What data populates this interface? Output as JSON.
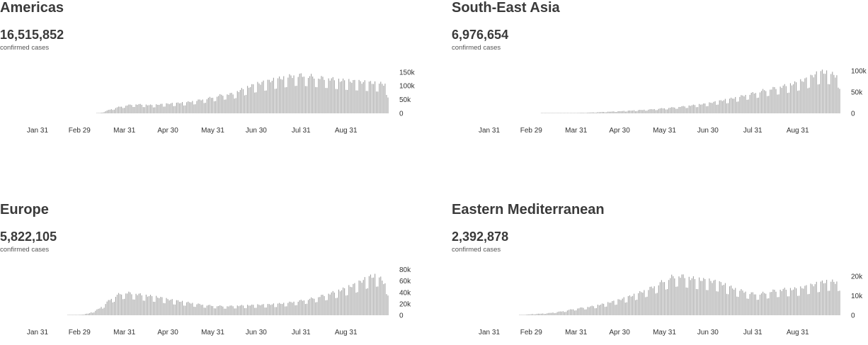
{
  "chart_data": [
    {
      "type": "bar",
      "title": "Americas",
      "total": "16,515,852",
      "caption": "confirmed cases",
      "y_ticks": [
        {
          "value": 0,
          "label": "0"
        },
        {
          "value": 50000,
          "label": "50k"
        },
        {
          "value": 100000,
          "label": "100k"
        },
        {
          "value": 150000,
          "label": "150k"
        }
      ],
      "ymax": 170000,
      "x_ticks": [
        {
          "day": 30,
          "label": "Jan 31"
        },
        {
          "day": 59,
          "label": "Feb 29"
        },
        {
          "day": 90,
          "label": "Mar 31"
        },
        {
          "day": 120,
          "label": "Apr 30"
        },
        {
          "day": 151,
          "label": "May 31"
        },
        {
          "day": 181,
          "label": "Jun 30"
        },
        {
          "day": 212,
          "label": "Jul 31"
        },
        {
          "day": 243,
          "label": "Aug 31"
        }
      ],
      "x_start_day": 8,
      "x_end_day": 272,
      "daily_points": [
        [
          8,
          0
        ],
        [
          70,
          0
        ],
        [
          73,
          1000
        ],
        [
          75,
          4000
        ],
        [
          77,
          8000
        ],
        [
          80,
          14000
        ],
        [
          85,
          22000
        ],
        [
          90,
          28000
        ],
        [
          95,
          32000
        ],
        [
          100,
          33000
        ],
        [
          105,
          31000
        ],
        [
          110,
          30000
        ],
        [
          115,
          33000
        ],
        [
          120,
          35000
        ],
        [
          125,
          37000
        ],
        [
          130,
          39000
        ],
        [
          135,
          42000
        ],
        [
          140,
          47000
        ],
        [
          145,
          52000
        ],
        [
          150,
          58000
        ],
        [
          155,
          65000
        ],
        [
          160,
          70000
        ],
        [
          165,
          72000
        ],
        [
          170,
          85000
        ],
        [
          175,
          95000
        ],
        [
          180,
          105000
        ],
        [
          185,
          112000
        ],
        [
          190,
          118000
        ],
        [
          195,
          125000
        ],
        [
          200,
          130000
        ],
        [
          205,
          136000
        ],
        [
          210,
          140000
        ],
        [
          215,
          138000
        ],
        [
          220,
          135000
        ],
        [
          225,
          130000
        ],
        [
          230,
          128000
        ],
        [
          235,
          124000
        ],
        [
          240,
          120000
        ],
        [
          245,
          118000
        ],
        [
          250,
          116000
        ],
        [
          255,
          114000
        ],
        [
          260,
          112000
        ],
        [
          265,
          110000
        ],
        [
          270,
          106000
        ],
        [
          272,
          80000
        ]
      ]
    },
    {
      "type": "bar",
      "title": "South-East Asia",
      "total": "6,976,654",
      "caption": "confirmed cases",
      "y_ticks": [
        {
          "value": 0,
          "label": "0"
        },
        {
          "value": 50000,
          "label": "50k"
        },
        {
          "value": 100000,
          "label": "100k"
        }
      ],
      "ymax": 110000,
      "x_ticks": [
        {
          "day": 30,
          "label": "Jan 31"
        },
        {
          "day": 59,
          "label": "Feb 29"
        },
        {
          "day": 90,
          "label": "Mar 31"
        },
        {
          "day": 120,
          "label": "Apr 30"
        },
        {
          "day": 151,
          "label": "May 31"
        },
        {
          "day": 181,
          "label": "Jun 30"
        },
        {
          "day": 212,
          "label": "Jul 31"
        },
        {
          "day": 243,
          "label": "Aug 31"
        }
      ],
      "x_start_day": 8,
      "x_end_day": 272,
      "daily_points": [
        [
          8,
          0
        ],
        [
          65,
          0
        ],
        [
          70,
          200
        ],
        [
          80,
          500
        ],
        [
          90,
          1000
        ],
        [
          100,
          2000
        ],
        [
          110,
          3500
        ],
        [
          120,
          5000
        ],
        [
          130,
          7000
        ],
        [
          140,
          9000
        ],
        [
          150,
          12000
        ],
        [
          160,
          15000
        ],
        [
          170,
          19000
        ],
        [
          180,
          23000
        ],
        [
          190,
          30000
        ],
        [
          200,
          37000
        ],
        [
          210,
          46000
        ],
        [
          220,
          55000
        ],
        [
          230,
          62000
        ],
        [
          240,
          70000
        ],
        [
          250,
          82000
        ],
        [
          255,
          92000
        ],
        [
          260,
          98000
        ],
        [
          265,
          95000
        ],
        [
          270,
          88000
        ],
        [
          272,
          80000
        ]
      ]
    },
    {
      "type": "bar",
      "title": "Europe",
      "total": "5,822,105",
      "caption": "confirmed cases",
      "y_ticks": [
        {
          "value": 0,
          "label": "0"
        },
        {
          "value": 20000,
          "label": "20k"
        },
        {
          "value": 40000,
          "label": "40k"
        },
        {
          "value": 60000,
          "label": "60k"
        },
        {
          "value": 80000,
          "label": "80k"
        }
      ],
      "ymax": 82000,
      "x_ticks": [
        {
          "day": 30,
          "label": "Jan 31"
        },
        {
          "day": 59,
          "label": "Feb 29"
        },
        {
          "day": 90,
          "label": "Mar 31"
        },
        {
          "day": 120,
          "label": "Apr 30"
        },
        {
          "day": 151,
          "label": "May 31"
        },
        {
          "day": 181,
          "label": "Jun 30"
        },
        {
          "day": 212,
          "label": "Jul 31"
        },
        {
          "day": 243,
          "label": "Aug 31"
        }
      ],
      "x_start_day": 8,
      "x_end_day": 272,
      "daily_points": [
        [
          8,
          0
        ],
        [
          50,
          0
        ],
        [
          55,
          200
        ],
        [
          60,
          1000
        ],
        [
          65,
          3000
        ],
        [
          70,
          8000
        ],
        [
          75,
          16000
        ],
        [
          80,
          28000
        ],
        [
          85,
          36000
        ],
        [
          90,
          40000
        ],
        [
          95,
          39000
        ],
        [
          100,
          37000
        ],
        [
          105,
          35000
        ],
        [
          110,
          33000
        ],
        [
          115,
          31000
        ],
        [
          120,
          28000
        ],
        [
          125,
          26000
        ],
        [
          130,
          24000
        ],
        [
          140,
          20000
        ],
        [
          150,
          17000
        ],
        [
          160,
          16000
        ],
        [
          170,
          17000
        ],
        [
          180,
          18000
        ],
        [
          190,
          19000
        ],
        [
          200,
          21000
        ],
        [
          210,
          25000
        ],
        [
          220,
          30000
        ],
        [
          230,
          37000
        ],
        [
          240,
          45000
        ],
        [
          250,
          55000
        ],
        [
          255,
          62000
        ],
        [
          260,
          68000
        ],
        [
          265,
          70000
        ],
        [
          270,
          55000
        ],
        [
          272,
          48000
        ]
      ]
    },
    {
      "type": "bar",
      "title": "Eastern Mediterranean",
      "total": "2,392,878",
      "caption": "confirmed cases",
      "y_ticks": [
        {
          "value": 0,
          "label": "0"
        },
        {
          "value": 10000,
          "label": "10k"
        },
        {
          "value": 20000,
          "label": "20k"
        }
      ],
      "ymax": 24000,
      "x_ticks": [
        {
          "day": 30,
          "label": "Jan 31"
        },
        {
          "day": 59,
          "label": "Feb 29"
        },
        {
          "day": 90,
          "label": "Mar 31"
        },
        {
          "day": 120,
          "label": "Apr 30"
        },
        {
          "day": 151,
          "label": "May 31"
        },
        {
          "day": 181,
          "label": "Jun 30"
        },
        {
          "day": 212,
          "label": "Jul 31"
        },
        {
          "day": 243,
          "label": "Aug 31"
        }
      ],
      "x_start_day": 8,
      "x_end_day": 272,
      "daily_points": [
        [
          8,
          0
        ],
        [
          50,
          0
        ],
        [
          55,
          300
        ],
        [
          60,
          600
        ],
        [
          70,
          1000
        ],
        [
          80,
          2000
        ],
        [
          90,
          3500
        ],
        [
          100,
          4500
        ],
        [
          110,
          6000
        ],
        [
          120,
          8000
        ],
        [
          130,
          10500
        ],
        [
          140,
          13500
        ],
        [
          150,
          17500
        ],
        [
          155,
          19500
        ],
        [
          160,
          20500
        ],
        [
          165,
          20000
        ],
        [
          170,
          19000
        ],
        [
          175,
          18500
        ],
        [
          180,
          18000
        ],
        [
          185,
          17500
        ],
        [
          190,
          16500
        ],
        [
          195,
          15000
        ],
        [
          200,
          13500
        ],
        [
          205,
          12500
        ],
        [
          210,
          11500
        ],
        [
          215,
          11000
        ],
        [
          220,
          11500
        ],
        [
          225,
          12500
        ],
        [
          230,
          13000
        ],
        [
          235,
          13500
        ],
        [
          240,
          13500
        ],
        [
          245,
          14000
        ],
        [
          250,
          15000
        ],
        [
          255,
          16000
        ],
        [
          260,
          17000
        ],
        [
          265,
          17500
        ],
        [
          270,
          17000
        ],
        [
          272,
          17500
        ]
      ]
    }
  ]
}
